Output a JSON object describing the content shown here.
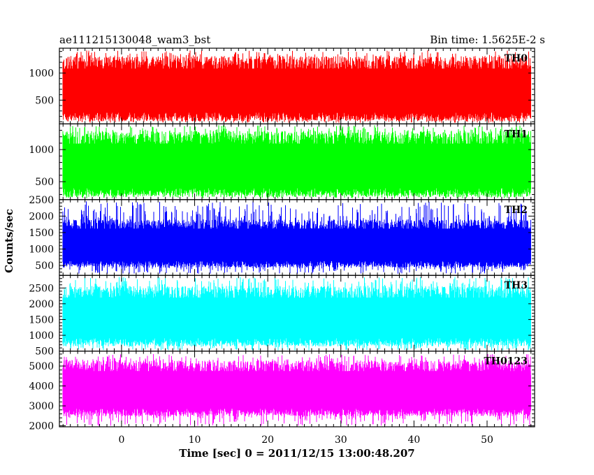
{
  "header": {
    "left_title": "ae111215130048_wam3_bst",
    "right_title": "Bin time: 1.5625E-2 s"
  },
  "chart_data": {
    "type": "line",
    "title": "ae111215130048_wam3_bst",
    "subtitle": "Bin time: 1.5625E-2 s",
    "xlabel": "Time [sec] 0 = 2011/12/15 13:00:48.207",
    "ylabel": "Counts/sec",
    "xlim": [
      -8.5,
      56.5
    ],
    "data_x_range": [
      -8,
      56
    ],
    "x_ticks": [
      0,
      10,
      20,
      30,
      40,
      50
    ],
    "grid": false,
    "legend": "none",
    "panels": [
      {
        "name": "TH0",
        "color": "#ff0000",
        "ylim": [
          60,
          1460
        ],
        "y_ticks": [
          500,
          1000
        ],
        "band": {
          "low": 200,
          "high": 1150,
          "min": 80,
          "max": 1420
        }
      },
      {
        "name": "TH1",
        "color": "#00ff00",
        "ylim": [
          220,
          1400
        ],
        "y_ticks": [
          500,
          1000
        ],
        "band": {
          "low": 340,
          "high": 1150,
          "min": 240,
          "max": 1380
        }
      },
      {
        "name": "TH2",
        "color": "#0000ff",
        "ylim": [
          200,
          2500
        ],
        "y_ticks": [
          500,
          1000,
          1500,
          2000,
          2500
        ],
        "band": {
          "low": 550,
          "high": 1700,
          "min": 250,
          "max": 2450
        }
      },
      {
        "name": "TH3",
        "color": "#00ffff",
        "ylim": [
          500,
          2900
        ],
        "y_ticks": [
          500,
          1000,
          1500,
          2000,
          2500
        ],
        "band": {
          "low": 800,
          "high": 2300,
          "min": 520,
          "max": 2850
        }
      },
      {
        "name": "TH0123",
        "color": "#ff00ff",
        "ylim": [
          1950,
          5750
        ],
        "y_ticks": [
          2000,
          3000,
          4000,
          5000
        ],
        "band": {
          "low": 2700,
          "high": 4900,
          "min": 2000,
          "max": 5600
        }
      }
    ]
  }
}
